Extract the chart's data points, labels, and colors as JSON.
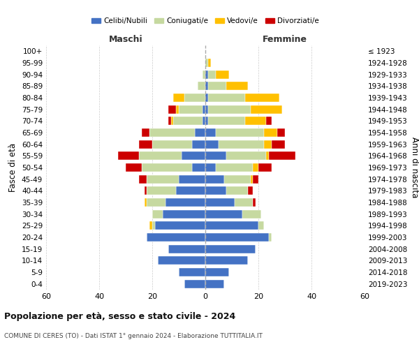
{
  "age_groups": [
    "100+",
    "95-99",
    "90-94",
    "85-89",
    "80-84",
    "75-79",
    "70-74",
    "65-69",
    "60-64",
    "55-59",
    "50-54",
    "45-49",
    "40-44",
    "35-39",
    "30-34",
    "25-29",
    "20-24",
    "15-19",
    "10-14",
    "5-9",
    "0-4"
  ],
  "birth_years": [
    "≤ 1923",
    "1924-1928",
    "1929-1933",
    "1934-1938",
    "1939-1943",
    "1944-1948",
    "1949-1953",
    "1954-1958",
    "1959-1963",
    "1964-1968",
    "1969-1973",
    "1974-1978",
    "1979-1983",
    "1984-1988",
    "1989-1993",
    "1994-1998",
    "1999-2003",
    "2004-2008",
    "2009-2013",
    "2014-2018",
    "2019-2023"
  ],
  "colors": {
    "celibi": "#4472c4",
    "coniugati": "#c6d9a0",
    "vedovi": "#ffc000",
    "divorziati": "#cc0000"
  },
  "males": {
    "celibi": [
      0,
      0,
      0,
      0,
      0,
      1,
      1,
      4,
      5,
      9,
      5,
      10,
      11,
      15,
      16,
      19,
      22,
      14,
      18,
      10,
      8
    ],
    "coniugati": [
      0,
      0,
      1,
      3,
      8,
      9,
      11,
      17,
      15,
      16,
      19,
      12,
      11,
      7,
      4,
      1,
      0,
      0,
      0,
      0,
      0
    ],
    "vedovi": [
      0,
      0,
      0,
      0,
      4,
      1,
      1,
      0,
      0,
      0,
      0,
      0,
      0,
      1,
      0,
      1,
      0,
      0,
      0,
      0,
      0
    ],
    "divorziati": [
      0,
      0,
      0,
      0,
      0,
      3,
      1,
      3,
      5,
      8,
      6,
      3,
      1,
      0,
      0,
      0,
      0,
      0,
      0,
      0,
      0
    ]
  },
  "females": {
    "celibi": [
      0,
      0,
      1,
      1,
      1,
      1,
      1,
      4,
      5,
      8,
      4,
      7,
      8,
      11,
      14,
      20,
      24,
      19,
      16,
      9,
      7
    ],
    "coniugati": [
      0,
      1,
      3,
      7,
      14,
      16,
      14,
      18,
      17,
      15,
      14,
      10,
      8,
      7,
      7,
      2,
      1,
      0,
      0,
      0,
      0
    ],
    "vedovi": [
      0,
      1,
      5,
      8,
      13,
      12,
      8,
      5,
      3,
      1,
      2,
      1,
      0,
      0,
      0,
      0,
      0,
      0,
      0,
      0,
      0
    ],
    "divorziati": [
      0,
      0,
      0,
      0,
      0,
      0,
      2,
      3,
      5,
      10,
      5,
      2,
      2,
      1,
      0,
      0,
      0,
      0,
      0,
      0,
      0
    ]
  },
  "xlim": 60,
  "title": "Popolazione per età, sesso e stato civile - 2024",
  "subtitle": "COMUNE DI CERES (TO) - Dati ISTAT 1° gennaio 2024 - Elaborazione TUTTITALIA.IT",
  "ylabel_left": "Fasce di età",
  "ylabel_right": "Anni di nascita",
  "xlabel_maschi": "Maschi",
  "xlabel_femmine": "Femmine",
  "legend_labels": [
    "Celibi/Nubili",
    "Coniugati/e",
    "Vedovi/e",
    "Divorziati/e"
  ],
  "bg_color": "#ffffff",
  "grid_color": "#cccccc"
}
